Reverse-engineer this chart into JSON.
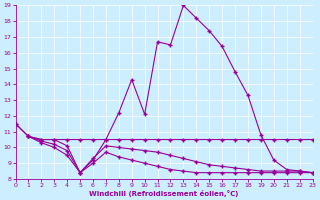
{
  "xlabel": "Windchill (Refroidissement éolien,°C)",
  "xlim": [
    0,
    23
  ],
  "ylim": [
    8,
    19
  ],
  "yticks": [
    8,
    9,
    10,
    11,
    12,
    13,
    14,
    15,
    16,
    17,
    18,
    19
  ],
  "xticks": [
    0,
    1,
    2,
    3,
    4,
    5,
    6,
    7,
    8,
    9,
    10,
    11,
    12,
    13,
    14,
    15,
    16,
    17,
    18,
    19,
    20,
    21,
    22,
    23
  ],
  "bg_color": "#cceeff",
  "line_color": "#990099",
  "line1_x": [
    0,
    1,
    2,
    3,
    4,
    5,
    6,
    7,
    8,
    9,
    10,
    11,
    12,
    13,
    14,
    15,
    16,
    17,
    18,
    19,
    20,
    21,
    22,
    23
  ],
  "line1_y": [
    11.5,
    10.7,
    10.5,
    10.5,
    10.1,
    8.4,
    9.2,
    10.5,
    12.2,
    14.3,
    12.1,
    16.7,
    16.5,
    19.0,
    18.2,
    17.4,
    16.4,
    14.8,
    13.3,
    10.8,
    9.2,
    8.6,
    8.5,
    8.4
  ],
  "line2_x": [
    0,
    1,
    2,
    3,
    4,
    5,
    6,
    7,
    8,
    9,
    10,
    11,
    12,
    13,
    14,
    15,
    16,
    17,
    18,
    19,
    20,
    21,
    22,
    23
  ],
  "line2_y": [
    11.5,
    10.7,
    10.5,
    10.5,
    10.5,
    10.5,
    10.5,
    10.5,
    10.5,
    10.5,
    10.5,
    10.5,
    10.5,
    10.5,
    10.5,
    10.5,
    10.5,
    10.5,
    10.5,
    10.5,
    10.5,
    10.5,
    10.5,
    10.5
  ],
  "line3_x": [
    1,
    2,
    3,
    4,
    5,
    6,
    7,
    8,
    9,
    10,
    11,
    12,
    13,
    14,
    15,
    16,
    17,
    18,
    19,
    20,
    21,
    22,
    23
  ],
  "line3_y": [
    10.7,
    10.4,
    10.2,
    9.8,
    8.4,
    9.3,
    10.1,
    10.0,
    9.9,
    9.8,
    9.7,
    9.5,
    9.3,
    9.1,
    8.9,
    8.8,
    8.7,
    8.6,
    8.5,
    8.5,
    8.5,
    8.5,
    8.4
  ],
  "line4_x": [
    1,
    2,
    3,
    4,
    5,
    6,
    7,
    8,
    9,
    10,
    11,
    12,
    13,
    14,
    15,
    16,
    17,
    18,
    19,
    20,
    21,
    22,
    23
  ],
  "line4_y": [
    10.7,
    10.3,
    10.0,
    9.5,
    8.4,
    9.0,
    9.7,
    9.4,
    9.2,
    9.0,
    8.8,
    8.6,
    8.5,
    8.4,
    8.4,
    8.4,
    8.4,
    8.4,
    8.4,
    8.4,
    8.4,
    8.4,
    8.4
  ]
}
